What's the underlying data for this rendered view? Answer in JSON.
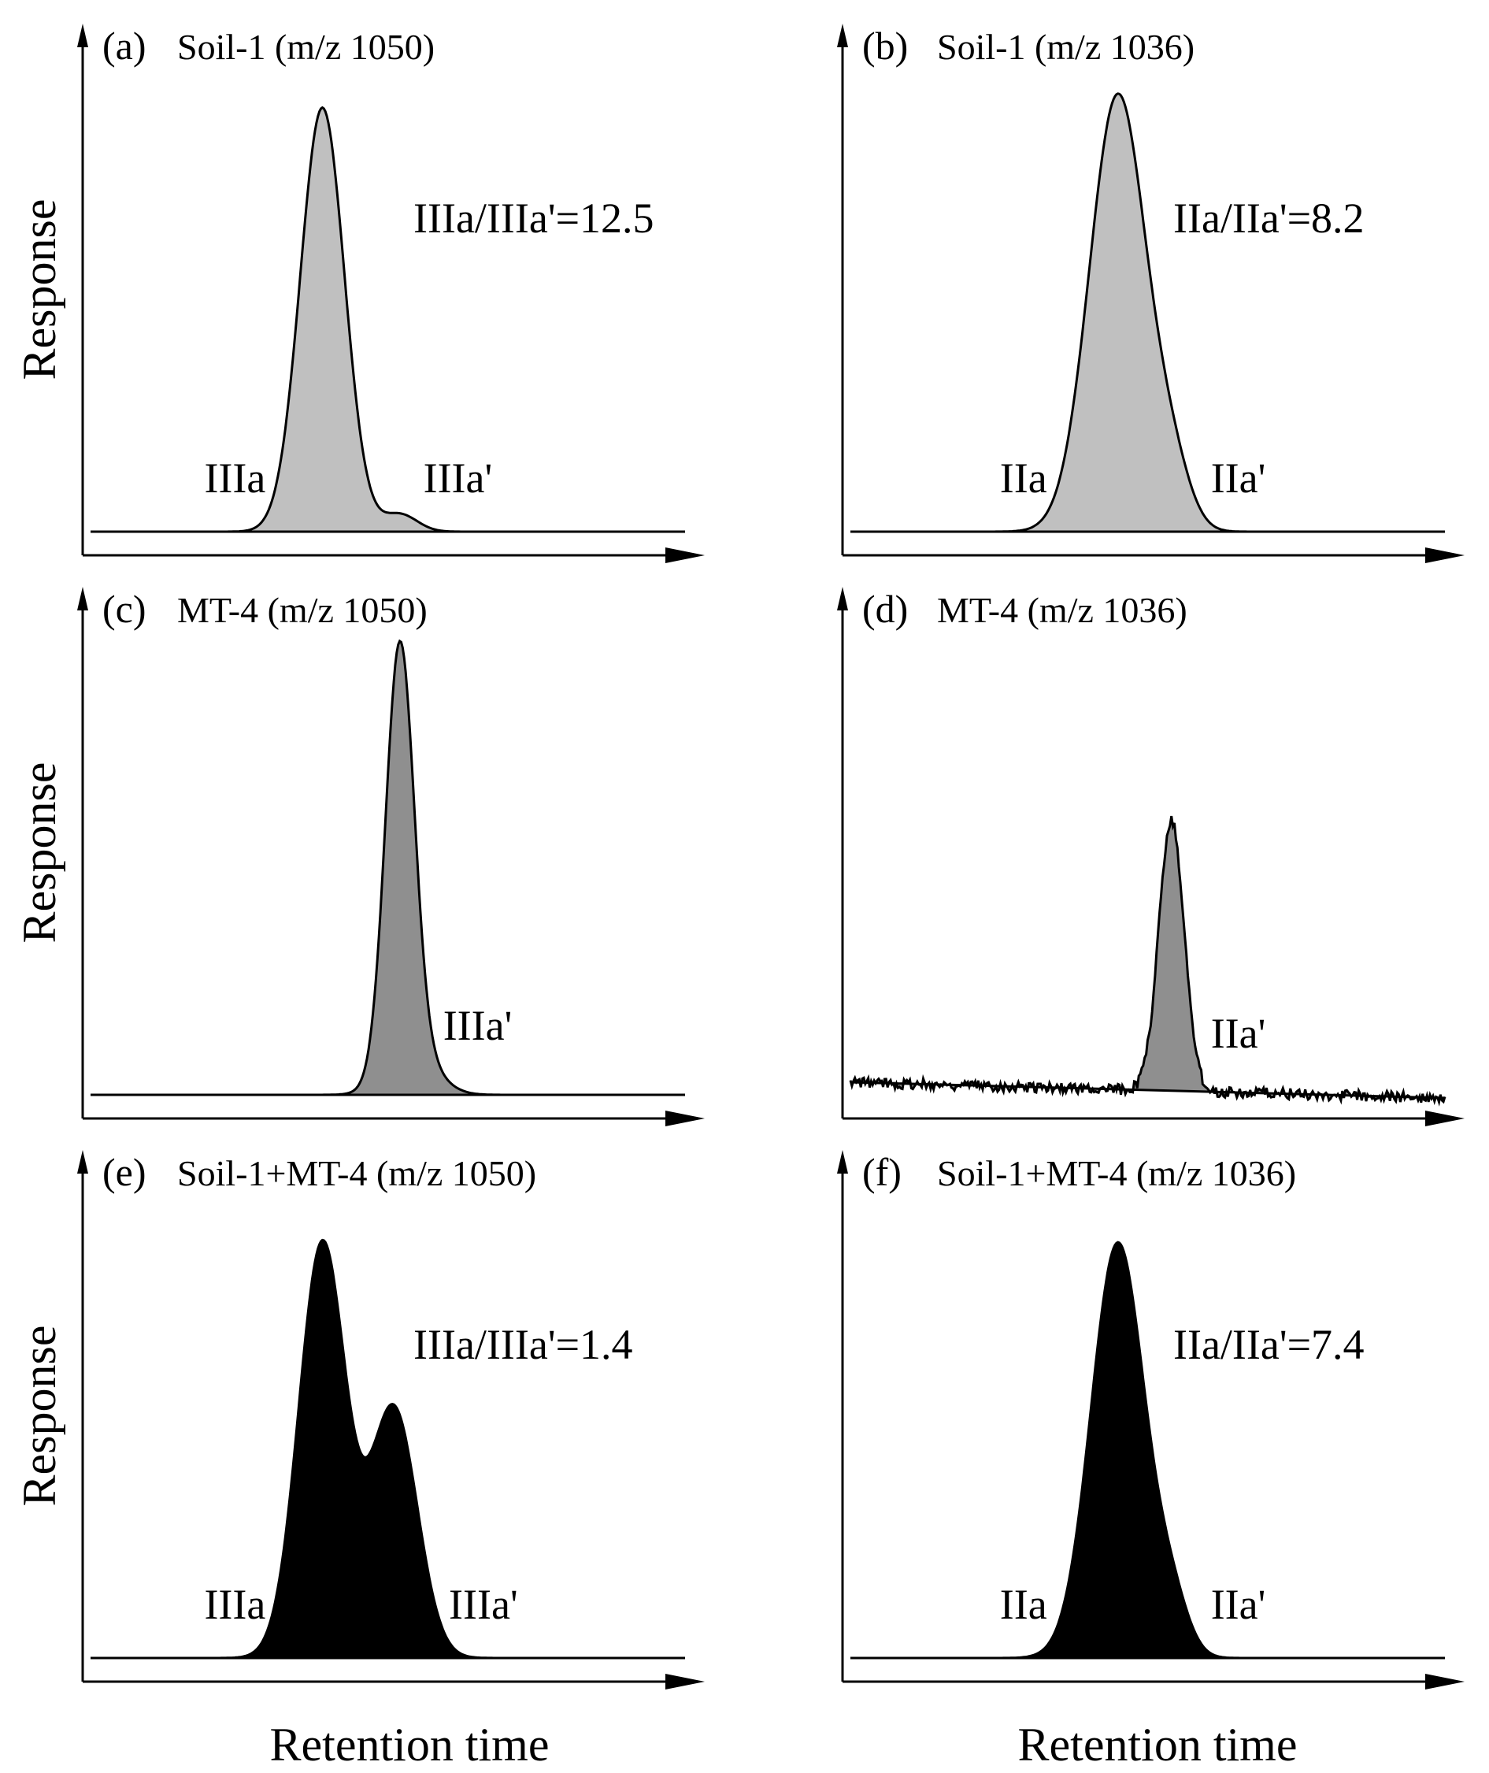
{
  "figure": {
    "ylabel": "Response",
    "xlabel": "Retention time"
  },
  "colors": {
    "light_fill": "#c0c0c0",
    "medium_fill": "#8f8f8f",
    "dark_fill": "#000000",
    "line": "#000000"
  },
  "chart_data": [
    {
      "id": "a",
      "type": "area",
      "letter": "(a)",
      "sample": "Soil-1",
      "ion": "(m/z 1050)",
      "ratio": "IIIa/IIIa'=12.5",
      "fill": "light",
      "peaks": [
        {
          "label": "IIIa",
          "rt": 0.39,
          "height": 0.97
        },
        {
          "label": "IIIa'",
          "rt": 0.52,
          "height": 0.04
        }
      ],
      "baseline_noise": false
    },
    {
      "id": "b",
      "type": "area",
      "letter": "(b)",
      "sample": "Soil-1",
      "ion": "(m/z 1036)",
      "ratio": "IIa/IIa'=8.2",
      "fill": "light",
      "peaks": [
        {
          "label": "IIa",
          "rt": 0.45,
          "height": 1.0
        },
        {
          "label": "IIa'",
          "rt": 0.54,
          "height": 0.12
        }
      ],
      "baseline_noise": false
    },
    {
      "id": "c",
      "type": "area",
      "letter": "(c)",
      "sample": "MT-4",
      "ion": "(m/z 1050)",
      "ratio": "",
      "fill": "medium",
      "peaks": [
        {
          "label": "",
          "rt": 0.52,
          "height": 0.95
        },
        {
          "label": "IIIa'",
          "rt": 0.54,
          "height": 0.1
        }
      ],
      "baseline_noise": false
    },
    {
      "id": "d",
      "type": "area",
      "letter": "(d)",
      "sample": "MT-4",
      "ion": "(m/z 1036)",
      "ratio": "",
      "fill": "medium",
      "peaks": [
        {
          "label": "IIa'",
          "rt": 0.54,
          "height": 0.62
        }
      ],
      "baseline_noise": true
    },
    {
      "id": "e",
      "type": "area",
      "letter": "(e)",
      "sample": "Soil-1+MT-4",
      "ion": "(m/z 1050)",
      "ratio": "IIIa/IIIa'=1.4",
      "fill": "dark",
      "peaks": [
        {
          "label": "IIIa",
          "rt": 0.39,
          "height": 0.95
        },
        {
          "label": "IIIa'",
          "rt": 0.51,
          "height": 0.57
        }
      ],
      "baseline_noise": false
    },
    {
      "id": "f",
      "type": "area",
      "letter": "(f)",
      "sample": "Soil-1+MT-4",
      "ion": "(m/z 1036)",
      "ratio": "IIa/IIa'=7.4",
      "fill": "dark",
      "peaks": [
        {
          "label": "IIa",
          "rt": 0.45,
          "height": 0.95
        },
        {
          "label": "IIa'",
          "rt": 0.54,
          "height": 0.11
        }
      ],
      "baseline_noise": false
    }
  ]
}
